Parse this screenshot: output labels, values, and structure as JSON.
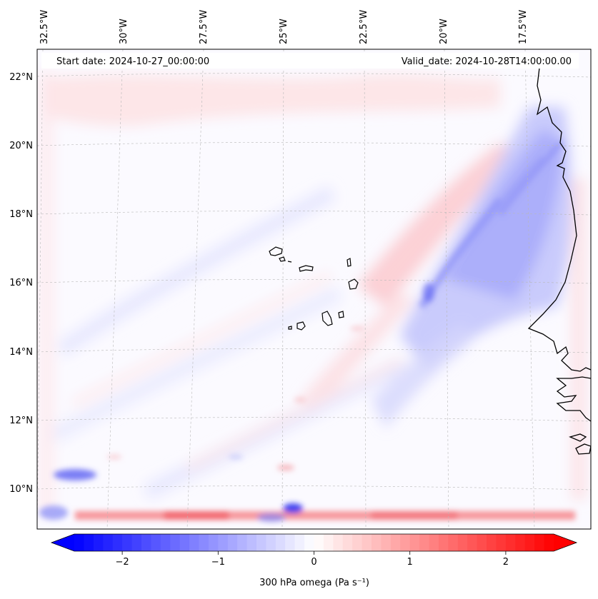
{
  "map": {
    "header": {
      "start_date": "Start date: 2024-10-27_00:00:00",
      "valid_date": "Valid_date: 2024-10-28T14:00:00.00"
    },
    "longitude_labels": [
      "32.5°W",
      "30°W",
      "27.5°W",
      "25°W",
      "22.5°W",
      "20°W",
      "17.5°W"
    ],
    "latitude_labels": [
      "22°N",
      "20°N",
      "18°N",
      "16°N",
      "14°N",
      "12°N",
      "10°N"
    ],
    "features": [
      "cape-verde-islands",
      "west-africa-coastline"
    ]
  },
  "colorbar": {
    "label": "300 hPa omega (Pa s⁻¹)",
    "ticks": [
      "−2",
      "−1",
      "0",
      "1",
      "2"
    ],
    "tick_values": [
      -2,
      -1,
      0,
      1,
      2
    ],
    "range": [
      -2.5,
      2.5
    ],
    "extend": "both",
    "colormap": "bwr",
    "colors": {
      "negative": "#0000ff",
      "zero": "#ffffff",
      "positive": "#ff0000"
    }
  }
}
